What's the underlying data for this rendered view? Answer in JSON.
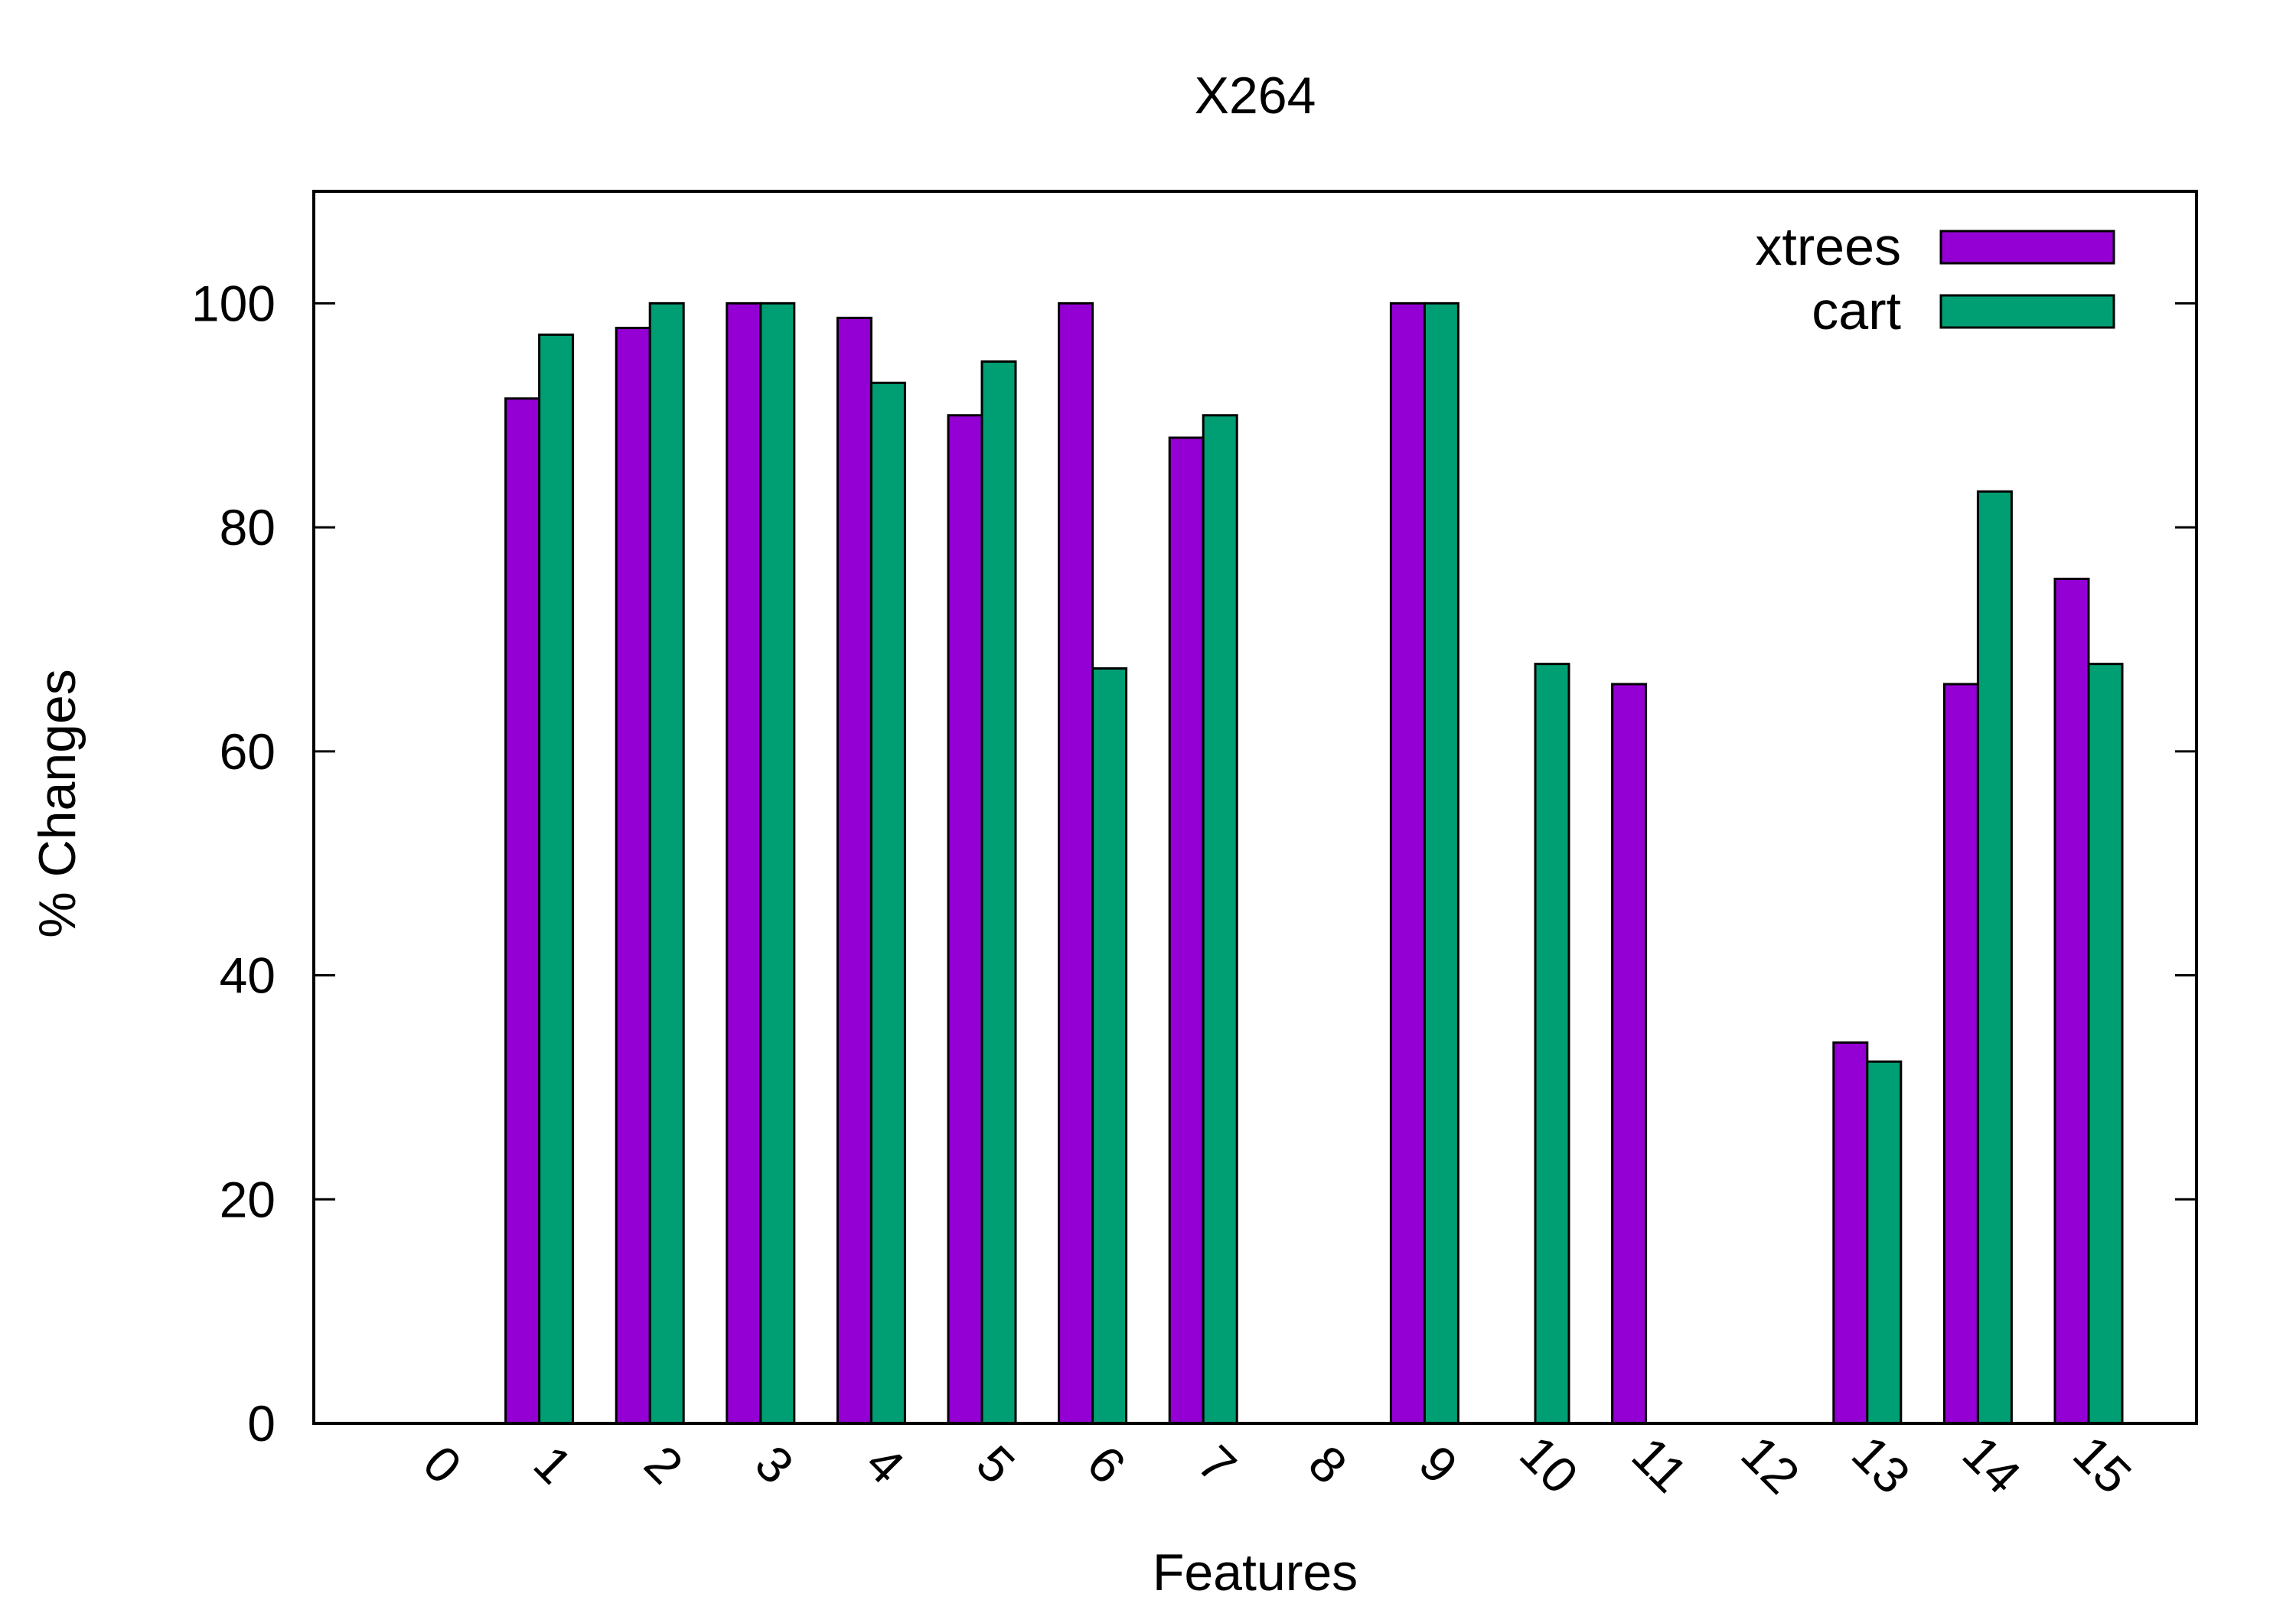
{
  "chart_data": {
    "type": "bar",
    "title": "X264",
    "xlabel": "Features",
    "ylabel": "% Changes",
    "categories": [
      "0",
      "1",
      "2",
      "3",
      "4",
      "5",
      "6",
      "7",
      "8",
      "9",
      "10",
      "11",
      "12",
      "13",
      "14",
      "15"
    ],
    "series": [
      {
        "name": "xtrees",
        "color": "#9400d3",
        "values": [
          0,
          91.5,
          97.8,
          100,
          98.7,
          90,
          100,
          88,
          0,
          100,
          0,
          66,
          0,
          34,
          66,
          75.4
        ]
      },
      {
        "name": "cart",
        "color": "#009e73",
        "values": [
          0,
          97.2,
          100,
          100,
          92.9,
          94.8,
          67.4,
          90,
          0,
          100,
          67.8,
          0,
          0,
          32.3,
          83.2,
          67.8
        ]
      }
    ],
    "ylim": [
      0,
      110
    ],
    "yticks": [
      0,
      20,
      40,
      60,
      80,
      100
    ],
    "grid": false,
    "legend": "top-right",
    "xtick_rotation": "rotated"
  }
}
